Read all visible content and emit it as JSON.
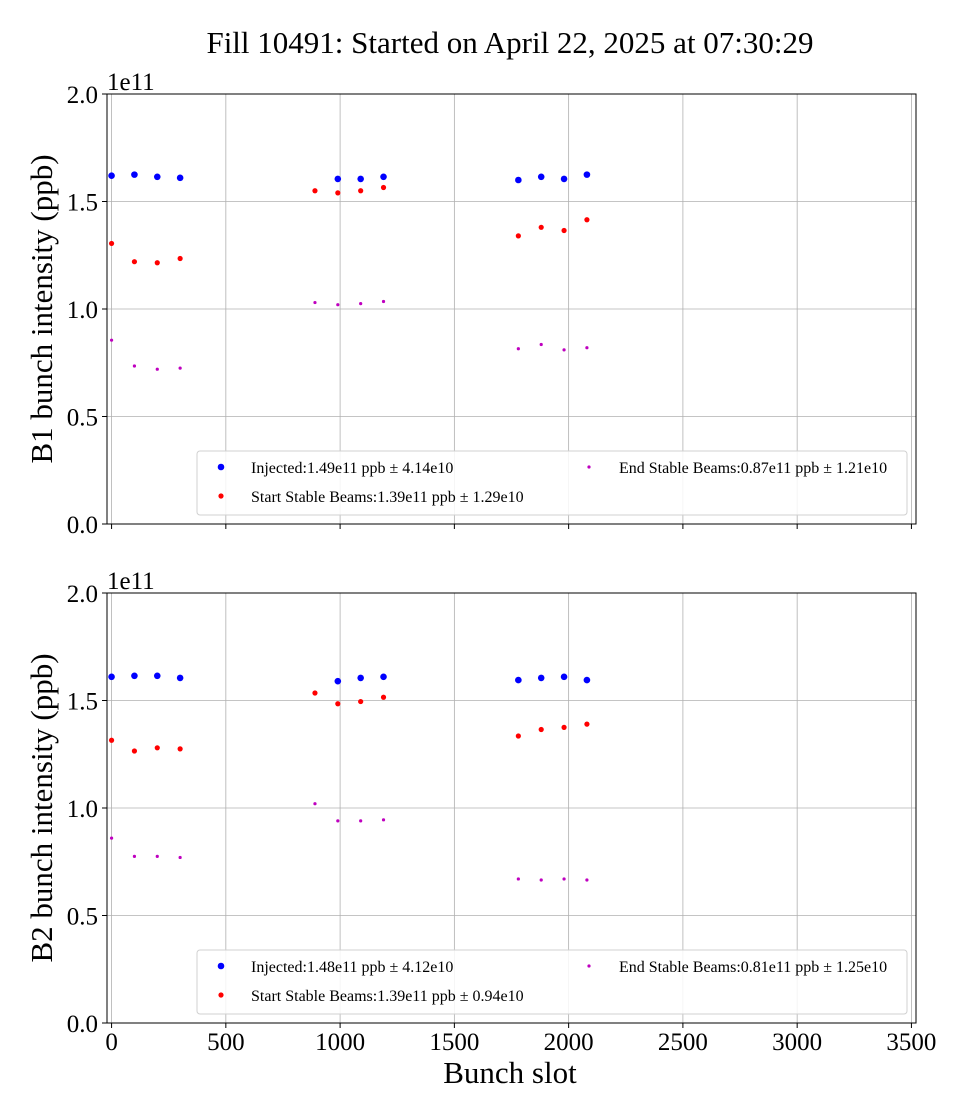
{
  "figure": {
    "title": "Fill 10491: Started on April 22, 2025 at 07:30:29",
    "xlabel": "Bunch slot"
  },
  "chart_data": [
    {
      "type": "scatter",
      "ylabel": "B1 bunch intensity (ppb)",
      "y_offset_label": "1e11",
      "xlim": [
        -20,
        3520
      ],
      "ylim": [
        0.0,
        2.0
      ],
      "x_ticks": [
        0,
        500,
        1000,
        1500,
        2000,
        2500,
        3000,
        3500
      ],
      "x_tick_labels_visible": false,
      "y_ticks": [
        0.0,
        0.5,
        1.0,
        1.5,
        2.0
      ],
      "y_tick_labels": [
        "0.0",
        "0.5",
        "1.0",
        "1.5",
        "2.0"
      ],
      "grid": true,
      "legend_placement": "lower-right",
      "series": [
        {
          "name": "Injected:1.49e11 ppb ± 4.14e10",
          "color": "#0000ff",
          "marker_size": "large",
          "x": [
            0,
            100,
            200,
            300,
            990,
            1090,
            1190,
            1780,
            1880,
            1980,
            2080
          ],
          "y": [
            1.62,
            1.625,
            1.615,
            1.61,
            1.605,
            1.605,
            1.615,
            1.6,
            1.615,
            1.605,
            1.625
          ]
        },
        {
          "name": "Start Stable Beams:1.39e11 ppb ± 1.29e10",
          "color": "#ff0000",
          "marker_size": "medium",
          "x": [
            0,
            100,
            200,
            300,
            890,
            990,
            1090,
            1190,
            1780,
            1880,
            1980,
            2080
          ],
          "y": [
            1.305,
            1.22,
            1.215,
            1.235,
            1.55,
            1.54,
            1.55,
            1.565,
            1.34,
            1.38,
            1.365,
            1.415
          ]
        },
        {
          "name": "End Stable Beams:0.87e11 ppb ± 1.21e10",
          "color": "#bf00bf",
          "marker_size": "small",
          "x": [
            0,
            100,
            200,
            300,
            890,
            990,
            1090,
            1190,
            1780,
            1880,
            1980,
            2080
          ],
          "y": [
            0.855,
            0.735,
            0.72,
            0.725,
            1.03,
            1.02,
            1.025,
            1.035,
            0.815,
            0.835,
            0.81,
            0.82
          ]
        }
      ]
    },
    {
      "type": "scatter",
      "ylabel": "B2 bunch intensity (ppb)",
      "y_offset_label": "1e11",
      "xlim": [
        -20,
        3520
      ],
      "ylim": [
        0.0,
        2.0
      ],
      "x_ticks": [
        0,
        500,
        1000,
        1500,
        2000,
        2500,
        3000,
        3500
      ],
      "x_tick_labels": [
        "0",
        "500",
        "1000",
        "1500",
        "2000",
        "2500",
        "3000",
        "3500"
      ],
      "x_tick_labels_visible": true,
      "y_ticks": [
        0.0,
        0.5,
        1.0,
        1.5,
        2.0
      ],
      "y_tick_labels": [
        "0.0",
        "0.5",
        "1.0",
        "1.5",
        "2.0"
      ],
      "grid": true,
      "legend_placement": "lower-right",
      "series": [
        {
          "name": "Injected:1.48e11 ppb ± 4.12e10",
          "color": "#0000ff",
          "marker_size": "large",
          "x": [
            0,
            100,
            200,
            300,
            990,
            1090,
            1190,
            1780,
            1880,
            1980,
            2080
          ],
          "y": [
            1.61,
            1.615,
            1.615,
            1.605,
            1.59,
            1.605,
            1.61,
            1.595,
            1.605,
            1.61,
            1.595
          ]
        },
        {
          "name": "Start Stable Beams:1.39e11 ppb ± 0.94e10",
          "color": "#ff0000",
          "marker_size": "medium",
          "x": [
            0,
            100,
            200,
            300,
            890,
            990,
            1090,
            1190,
            1780,
            1880,
            1980,
            2080
          ],
          "y": [
            1.315,
            1.265,
            1.28,
            1.275,
            1.535,
            1.485,
            1.495,
            1.515,
            1.335,
            1.365,
            1.375,
            1.39
          ]
        },
        {
          "name": "End Stable Beams:0.81e11 ppb ± 1.25e10",
          "color": "#bf00bf",
          "marker_size": "small",
          "x": [
            0,
            100,
            200,
            300,
            890,
            990,
            1090,
            1190,
            1780,
            1880,
            1980,
            2080
          ],
          "y": [
            0.86,
            0.775,
            0.775,
            0.77,
            1.02,
            0.94,
            0.94,
            0.945,
            0.67,
            0.665,
            0.67,
            0.665
          ]
        }
      ]
    }
  ]
}
